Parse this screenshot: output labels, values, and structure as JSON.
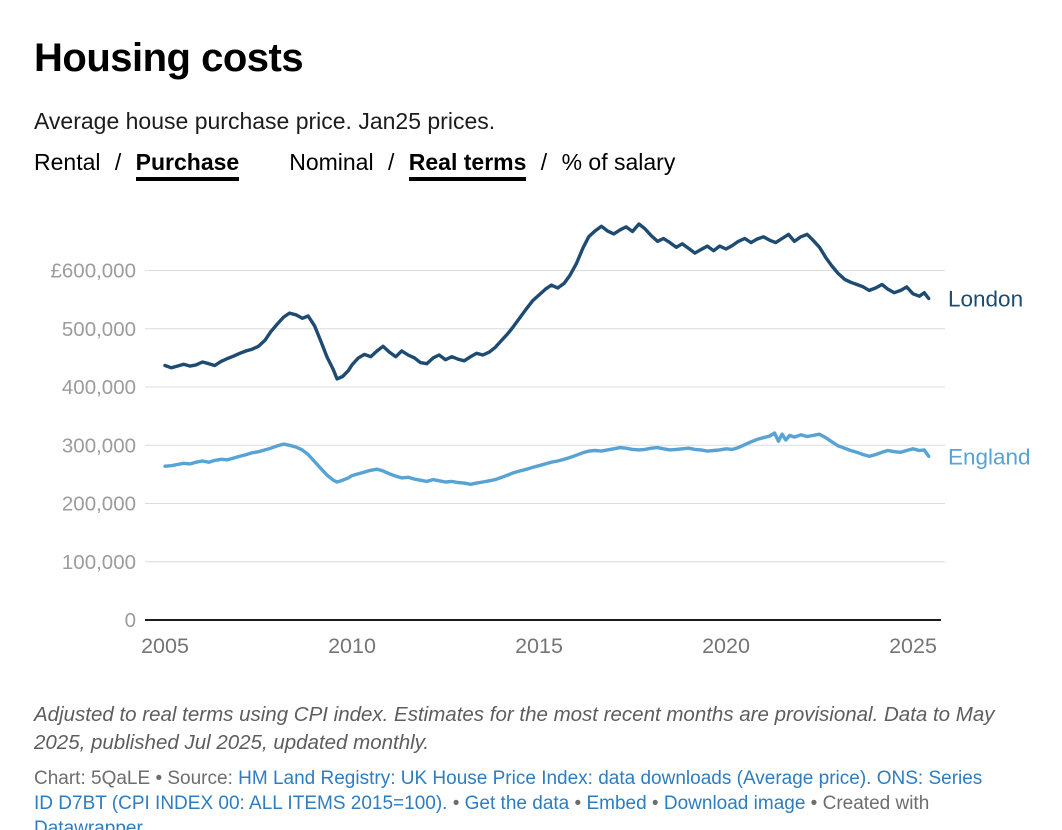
{
  "header": {
    "title": "Housing costs",
    "subtitle": "Average house purchase price. Jan25 prices.",
    "toggle_groups": [
      {
        "separator": "/",
        "options": [
          {
            "label": "Rental",
            "active": false
          },
          {
            "label": "Purchase",
            "active": true
          }
        ]
      },
      {
        "separator": "/",
        "options": [
          {
            "label": "Nominal",
            "active": false
          },
          {
            "label": "Real terms",
            "active": true
          },
          {
            "label": "% of salary",
            "active": false
          }
        ]
      }
    ]
  },
  "chart_data": {
    "type": "line",
    "title": "Housing costs",
    "subtitle": "Average house purchase price. Jan25 prices.",
    "xlabel": "",
    "ylabel": "",
    "grid": true,
    "legend_position": "line-end-labels",
    "x_axis": {
      "range": [
        2004.8,
        2025.9
      ],
      "ticks": [
        2005,
        2010,
        2015,
        2020,
        2025
      ]
    },
    "y_axis": {
      "range": [
        0,
        695000
      ],
      "ticks": [
        {
          "label": "£600,000",
          "value": 600000
        },
        {
          "label": "500,000",
          "value": 500000
        },
        {
          "label": "400,000",
          "value": 400000
        },
        {
          "label": "300,000",
          "value": 300000
        },
        {
          "label": "200,000",
          "value": 200000
        },
        {
          "label": "100,000",
          "value": 100000
        },
        {
          "label": "0",
          "value": 0
        }
      ]
    },
    "series": [
      {
        "name": "London",
        "color": "#1d4b72",
        "points": [
          [
            2005.0,
            437000
          ],
          [
            2005.17,
            433000
          ],
          [
            2005.33,
            436000
          ],
          [
            2005.5,
            439000
          ],
          [
            2005.67,
            436000
          ],
          [
            2005.83,
            438000
          ],
          [
            2006.0,
            443000
          ],
          [
            2006.17,
            440000
          ],
          [
            2006.33,
            437000
          ],
          [
            2006.5,
            444000
          ],
          [
            2006.67,
            449000
          ],
          [
            2006.83,
            453000
          ],
          [
            2007.0,
            458000
          ],
          [
            2007.17,
            462000
          ],
          [
            2007.33,
            465000
          ],
          [
            2007.5,
            470000
          ],
          [
            2007.67,
            480000
          ],
          [
            2007.83,
            495000
          ],
          [
            2008.0,
            508000
          ],
          [
            2008.17,
            520000
          ],
          [
            2008.33,
            527000
          ],
          [
            2008.5,
            524000
          ],
          [
            2008.67,
            518000
          ],
          [
            2008.83,
            522000
          ],
          [
            2009.0,
            505000
          ],
          [
            2009.17,
            478000
          ],
          [
            2009.33,
            452000
          ],
          [
            2009.5,
            430000
          ],
          [
            2009.6,
            414000
          ],
          [
            2009.75,
            418000
          ],
          [
            2009.9,
            428000
          ],
          [
            2010.0,
            438000
          ],
          [
            2010.17,
            450000
          ],
          [
            2010.33,
            456000
          ],
          [
            2010.5,
            452000
          ],
          [
            2010.67,
            462000
          ],
          [
            2010.83,
            470000
          ],
          [
            2011.0,
            460000
          ],
          [
            2011.17,
            452000
          ],
          [
            2011.33,
            462000
          ],
          [
            2011.5,
            455000
          ],
          [
            2011.67,
            450000
          ],
          [
            2011.83,
            442000
          ],
          [
            2012.0,
            440000
          ],
          [
            2012.17,
            450000
          ],
          [
            2012.33,
            455000
          ],
          [
            2012.5,
            447000
          ],
          [
            2012.67,
            452000
          ],
          [
            2012.83,
            448000
          ],
          [
            2013.0,
            445000
          ],
          [
            2013.17,
            452000
          ],
          [
            2013.33,
            458000
          ],
          [
            2013.5,
            455000
          ],
          [
            2013.67,
            460000
          ],
          [
            2013.83,
            468000
          ],
          [
            2014.0,
            480000
          ],
          [
            2014.17,
            492000
          ],
          [
            2014.33,
            505000
          ],
          [
            2014.5,
            520000
          ],
          [
            2014.67,
            535000
          ],
          [
            2014.83,
            548000
          ],
          [
            2015.0,
            558000
          ],
          [
            2015.17,
            568000
          ],
          [
            2015.33,
            575000
          ],
          [
            2015.5,
            570000
          ],
          [
            2015.67,
            578000
          ],
          [
            2015.83,
            592000
          ],
          [
            2016.0,
            612000
          ],
          [
            2016.17,
            638000
          ],
          [
            2016.33,
            658000
          ],
          [
            2016.5,
            668000
          ],
          [
            2016.67,
            676000
          ],
          [
            2016.83,
            668000
          ],
          [
            2017.0,
            663000
          ],
          [
            2017.17,
            670000
          ],
          [
            2017.33,
            675000
          ],
          [
            2017.5,
            667000
          ],
          [
            2017.67,
            680000
          ],
          [
            2017.83,
            672000
          ],
          [
            2018.0,
            660000
          ],
          [
            2018.17,
            650000
          ],
          [
            2018.33,
            655000
          ],
          [
            2018.5,
            648000
          ],
          [
            2018.67,
            640000
          ],
          [
            2018.83,
            646000
          ],
          [
            2019.0,
            638000
          ],
          [
            2019.17,
            630000
          ],
          [
            2019.33,
            636000
          ],
          [
            2019.5,
            642000
          ],
          [
            2019.67,
            634000
          ],
          [
            2019.83,
            642000
          ],
          [
            2020.0,
            637000
          ],
          [
            2020.17,
            643000
          ],
          [
            2020.33,
            650000
          ],
          [
            2020.5,
            655000
          ],
          [
            2020.67,
            648000
          ],
          [
            2020.83,
            654000
          ],
          [
            2021.0,
            658000
          ],
          [
            2021.17,
            652000
          ],
          [
            2021.33,
            648000
          ],
          [
            2021.5,
            655000
          ],
          [
            2021.67,
            662000
          ],
          [
            2021.83,
            650000
          ],
          [
            2022.0,
            658000
          ],
          [
            2022.17,
            662000
          ],
          [
            2022.33,
            652000
          ],
          [
            2022.5,
            640000
          ],
          [
            2022.67,
            622000
          ],
          [
            2022.83,
            608000
          ],
          [
            2023.0,
            595000
          ],
          [
            2023.17,
            585000
          ],
          [
            2023.33,
            580000
          ],
          [
            2023.5,
            576000
          ],
          [
            2023.67,
            572000
          ],
          [
            2023.83,
            566000
          ],
          [
            2024.0,
            570000
          ],
          [
            2024.17,
            576000
          ],
          [
            2024.33,
            568000
          ],
          [
            2024.5,
            562000
          ],
          [
            2024.67,
            566000
          ],
          [
            2024.83,
            572000
          ],
          [
            2025.0,
            560000
          ],
          [
            2025.17,
            556000
          ],
          [
            2025.3,
            562000
          ],
          [
            2025.42,
            552000
          ]
        ]
      },
      {
        "name": "England",
        "color": "#57a3d4",
        "points": [
          [
            2005.0,
            264000
          ],
          [
            2005.17,
            265000
          ],
          [
            2005.33,
            267000
          ],
          [
            2005.5,
            269000
          ],
          [
            2005.67,
            268000
          ],
          [
            2005.83,
            271000
          ],
          [
            2006.0,
            273000
          ],
          [
            2006.17,
            271000
          ],
          [
            2006.33,
            274000
          ],
          [
            2006.5,
            276000
          ],
          [
            2006.67,
            275000
          ],
          [
            2006.83,
            278000
          ],
          [
            2007.0,
            281000
          ],
          [
            2007.17,
            284000
          ],
          [
            2007.33,
            287000
          ],
          [
            2007.5,
            289000
          ],
          [
            2007.67,
            292000
          ],
          [
            2007.83,
            295000
          ],
          [
            2008.0,
            299000
          ],
          [
            2008.17,
            302000
          ],
          [
            2008.33,
            300000
          ],
          [
            2008.5,
            297000
          ],
          [
            2008.67,
            292000
          ],
          [
            2008.83,
            284000
          ],
          [
            2009.0,
            272000
          ],
          [
            2009.17,
            260000
          ],
          [
            2009.33,
            249000
          ],
          [
            2009.5,
            240000
          ],
          [
            2009.6,
            237000
          ],
          [
            2009.75,
            240000
          ],
          [
            2009.9,
            244000
          ],
          [
            2010.0,
            248000
          ],
          [
            2010.17,
            251000
          ],
          [
            2010.33,
            254000
          ],
          [
            2010.5,
            257000
          ],
          [
            2010.67,
            259000
          ],
          [
            2010.83,
            256000
          ],
          [
            2011.0,
            251000
          ],
          [
            2011.17,
            247000
          ],
          [
            2011.33,
            244000
          ],
          [
            2011.5,
            245000
          ],
          [
            2011.67,
            242000
          ],
          [
            2011.83,
            240000
          ],
          [
            2012.0,
            238000
          ],
          [
            2012.17,
            241000
          ],
          [
            2012.33,
            239000
          ],
          [
            2012.5,
            237000
          ],
          [
            2012.67,
            238000
          ],
          [
            2012.83,
            236000
          ],
          [
            2013.0,
            235000
          ],
          [
            2013.17,
            233000
          ],
          [
            2013.33,
            235000
          ],
          [
            2013.5,
            237000
          ],
          [
            2013.67,
            239000
          ],
          [
            2013.83,
            241000
          ],
          [
            2014.0,
            245000
          ],
          [
            2014.17,
            249000
          ],
          [
            2014.33,
            253000
          ],
          [
            2014.5,
            256000
          ],
          [
            2014.67,
            259000
          ],
          [
            2014.83,
            262000
          ],
          [
            2015.0,
            265000
          ],
          [
            2015.17,
            268000
          ],
          [
            2015.33,
            271000
          ],
          [
            2015.5,
            273000
          ],
          [
            2015.67,
            276000
          ],
          [
            2015.83,
            279000
          ],
          [
            2016.0,
            283000
          ],
          [
            2016.17,
            287000
          ],
          [
            2016.33,
            290000
          ],
          [
            2016.5,
            291000
          ],
          [
            2016.67,
            290000
          ],
          [
            2016.83,
            292000
          ],
          [
            2017.0,
            294000
          ],
          [
            2017.17,
            296000
          ],
          [
            2017.33,
            295000
          ],
          [
            2017.5,
            293000
          ],
          [
            2017.67,
            292000
          ],
          [
            2017.83,
            293000
          ],
          [
            2018.0,
            295000
          ],
          [
            2018.17,
            296000
          ],
          [
            2018.33,
            294000
          ],
          [
            2018.5,
            292000
          ],
          [
            2018.67,
            293000
          ],
          [
            2018.83,
            294000
          ],
          [
            2019.0,
            295000
          ],
          [
            2019.17,
            293000
          ],
          [
            2019.33,
            292000
          ],
          [
            2019.5,
            290000
          ],
          [
            2019.67,
            291000
          ],
          [
            2019.83,
            292000
          ],
          [
            2020.0,
            294000
          ],
          [
            2020.17,
            293000
          ],
          [
            2020.33,
            296000
          ],
          [
            2020.5,
            301000
          ],
          [
            2020.67,
            306000
          ],
          [
            2020.83,
            310000
          ],
          [
            2021.0,
            313000
          ],
          [
            2021.17,
            316000
          ],
          [
            2021.3,
            321000
          ],
          [
            2021.4,
            307000
          ],
          [
            2021.5,
            319000
          ],
          [
            2021.6,
            309000
          ],
          [
            2021.7,
            317000
          ],
          [
            2021.83,
            314000
          ],
          [
            2022.0,
            318000
          ],
          [
            2022.17,
            315000
          ],
          [
            2022.33,
            317000
          ],
          [
            2022.5,
            319000
          ],
          [
            2022.67,
            313000
          ],
          [
            2022.83,
            306000
          ],
          [
            2023.0,
            299000
          ],
          [
            2023.17,
            295000
          ],
          [
            2023.33,
            291000
          ],
          [
            2023.5,
            288000
          ],
          [
            2023.67,
            284000
          ],
          [
            2023.83,
            281000
          ],
          [
            2024.0,
            284000
          ],
          [
            2024.17,
            288000
          ],
          [
            2024.33,
            291000
          ],
          [
            2024.5,
            289000
          ],
          [
            2024.67,
            288000
          ],
          [
            2024.83,
            291000
          ],
          [
            2025.0,
            294000
          ],
          [
            2025.17,
            291000
          ],
          [
            2025.3,
            292000
          ],
          [
            2025.42,
            281000
          ]
        ]
      }
    ]
  },
  "footer": {
    "footnote": "Adjusted to real terms using CPI index. Estimates for the most recent months are provisional. Data to May 2025, published Jul 2025, updated monthly.",
    "attribution": {
      "parts": [
        {
          "text": "Chart: 5QaLE • Source: ",
          "link": false
        },
        {
          "text": "HM Land Registry: UK House Price Index: data downloads (Average price).",
          "link": true
        },
        {
          "text": " ",
          "link": false
        },
        {
          "text": "ONS: Series ID D7BT (CPI INDEX 00: ALL ITEMS 2015=100).",
          "link": true
        },
        {
          "text": " • ",
          "link": false
        },
        {
          "text": "Get the data",
          "link": true
        },
        {
          "text": " • ",
          "link": false
        },
        {
          "text": "Embed",
          "link": true
        },
        {
          "text": "  • ",
          "link": false
        },
        {
          "text": "Download image",
          "link": true
        },
        {
          "text": " • Created with ",
          "link": false
        },
        {
          "text": "Datawrapper",
          "link": true
        }
      ]
    }
  },
  "colors": {
    "london_line": "#1d4b72",
    "england_line": "#57a3d4",
    "gridline": "#dcdcdc",
    "axis_line": "#1c1c1c",
    "y_tick_label": "#9c9c9c",
    "x_tick_label": "#757575",
    "link": "#2d7dc0",
    "footnote_text": "#5d5d5d",
    "attribution_text": "#6d6d6d"
  }
}
